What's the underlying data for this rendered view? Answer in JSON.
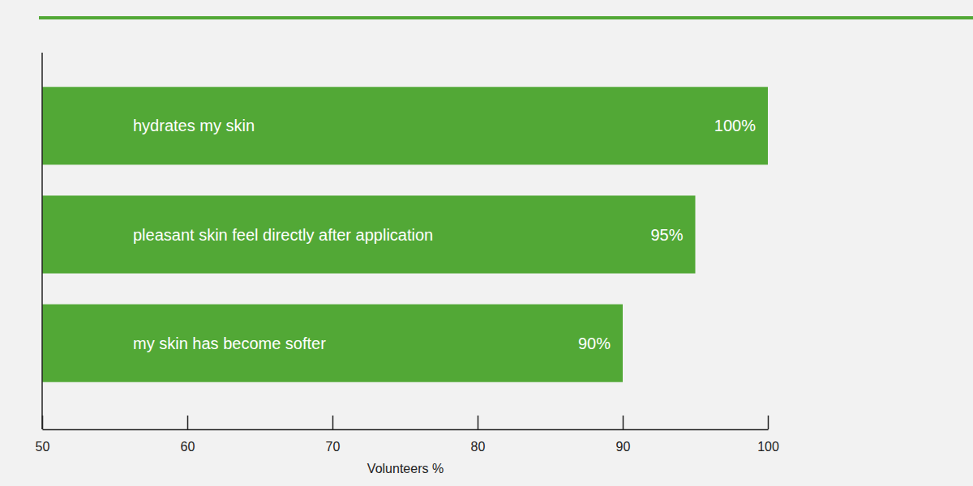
{
  "chart_data": {
    "type": "bar",
    "orientation": "horizontal",
    "categories": [
      "hydrates my skin",
      "pleasant skin feel directly after application",
      "my skin has become softer"
    ],
    "values": [
      100,
      95,
      90
    ],
    "value_labels": [
      "100%",
      "95%",
      "90%"
    ],
    "data_labels": true,
    "color": "#52a836",
    "xlim": [
      50,
      100
    ],
    "xticks": [
      50,
      60,
      70,
      80,
      90,
      100
    ],
    "xlabel": "Volunteers %",
    "tick_labels": "x"
  }
}
